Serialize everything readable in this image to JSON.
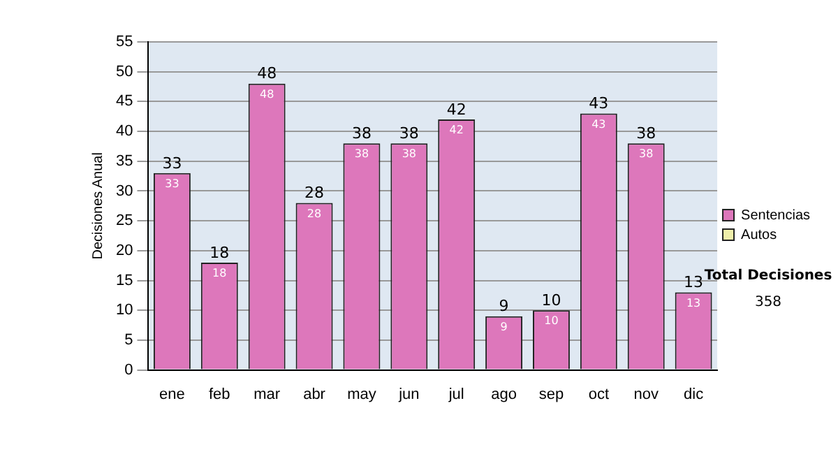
{
  "chart_data": {
    "type": "bar",
    "ylabel": "Decisiones Anual",
    "categories": [
      "ene",
      "feb",
      "mar",
      "abr",
      "may",
      "jun",
      "jul",
      "ago",
      "sep",
      "oct",
      "nov",
      "dic"
    ],
    "series": [
      {
        "name": "Sentencias",
        "color": "#dd77bb",
        "values": [
          33,
          18,
          48,
          28,
          38,
          38,
          42,
          9,
          10,
          43,
          38,
          13
        ],
        "value_labels": [
          "33",
          "18",
          "48",
          "28",
          "38",
          "38",
          "42",
          "9",
          "10",
          "43",
          "38",
          "13"
        ]
      },
      {
        "name": "Autos",
        "color": "#eeeeaa",
        "values": [
          null,
          null,
          null,
          null,
          null,
          null,
          null,
          null,
          null,
          null,
          null,
          null
        ]
      }
    ],
    "ylim": [
      0,
      55
    ],
    "yticks": [
      0,
      5,
      10,
      15,
      20,
      25,
      30,
      35,
      40,
      45,
      50,
      55
    ],
    "grid": "y",
    "legend": "right",
    "annotations": [
      "Total Decisiones",
      "358",
      {
        "text": "33",
        "x": "ene",
        "y": 33
      },
      {
        "text": "18",
        "x": "feb",
        "y": 18
      },
      {
        "text": "48",
        "x": "mar",
        "y": 48
      },
      {
        "text": "28",
        "x": "abr",
        "y": 28
      },
      {
        "text": "38",
        "x": "may",
        "y": 38
      },
      {
        "text": "38",
        "x": "jun",
        "y": 38
      },
      {
        "text": "42",
        "x": "jul",
        "y": 42
      },
      {
        "text": "9",
        "x": "ago",
        "y": 9
      },
      {
        "text": "10",
        "x": "sep",
        "y": 10
      },
      {
        "text": "43",
        "x": "oct",
        "y": 43
      },
      {
        "text": "38",
        "x": "nov",
        "y": 38
      },
      {
        "text": "13",
        "x": "dic",
        "y": 13
      }
    ]
  }
}
